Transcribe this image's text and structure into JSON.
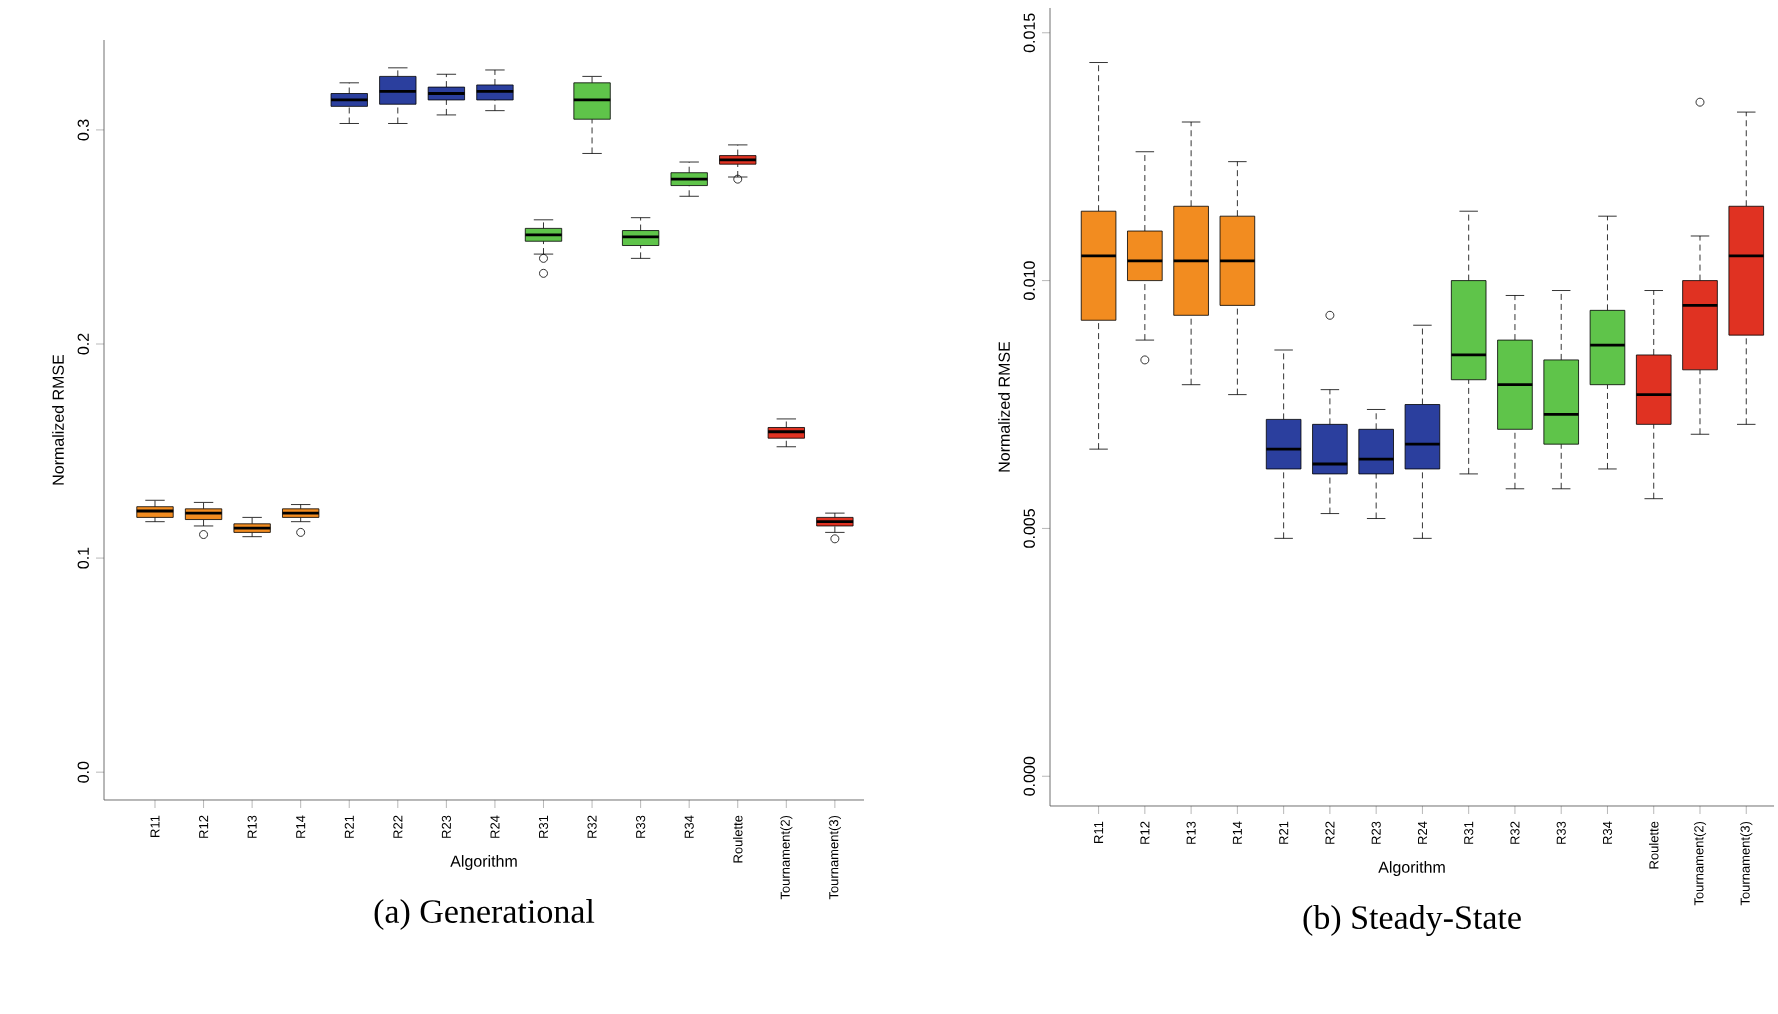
{
  "chart_data": [
    {
      "type": "box",
      "title": "(a) Generational",
      "xlabel": "Algorithm",
      "ylabel": "Normalized RMSE",
      "categories": [
        "R11",
        "R12",
        "R13",
        "R14",
        "R21",
        "R22",
        "R23",
        "R24",
        "R31",
        "R32",
        "R33",
        "R34",
        "Roulette",
        "Tournament(2)",
        "Tournament(3)"
      ],
      "colors": [
        "#f28c20",
        "#f28c20",
        "#f28c20",
        "#f28c20",
        "#2b3f9e",
        "#2b3f9e",
        "#2b3f9e",
        "#2b3f9e",
        "#5fc44a",
        "#5fc44a",
        "#5fc44a",
        "#5fc44a",
        "#e03222",
        "#e03222",
        "#e03222"
      ],
      "boxes": [
        {
          "low": 0.117,
          "q1": 0.119,
          "median": 0.122,
          "q3": 0.124,
          "high": 0.127
        },
        {
          "low": 0.115,
          "q1": 0.118,
          "median": 0.121,
          "q3": 0.123,
          "high": 0.126,
          "outliers": [
            0.111
          ]
        },
        {
          "low": 0.11,
          "q1": 0.112,
          "median": 0.114,
          "q3": 0.116,
          "high": 0.119
        },
        {
          "low": 0.117,
          "q1": 0.119,
          "median": 0.121,
          "q3": 0.123,
          "high": 0.125,
          "outliers": [
            0.112
          ]
        },
        {
          "low": 0.303,
          "q1": 0.311,
          "median": 0.314,
          "q3": 0.317,
          "high": 0.322
        },
        {
          "low": 0.303,
          "q1": 0.312,
          "median": 0.318,
          "q3": 0.325,
          "high": 0.329
        },
        {
          "low": 0.307,
          "q1": 0.314,
          "median": 0.317,
          "q3": 0.32,
          "high": 0.326
        },
        {
          "low": 0.309,
          "q1": 0.314,
          "median": 0.318,
          "q3": 0.321,
          "high": 0.328
        },
        {
          "low": 0.242,
          "q1": 0.248,
          "median": 0.251,
          "q3": 0.254,
          "high": 0.258,
          "outliers": [
            0.24,
            0.233
          ]
        },
        {
          "low": 0.289,
          "q1": 0.305,
          "median": 0.314,
          "q3": 0.322,
          "high": 0.325
        },
        {
          "low": 0.24,
          "q1": 0.246,
          "median": 0.25,
          "q3": 0.253,
          "high": 0.259
        },
        {
          "low": 0.269,
          "q1": 0.274,
          "median": 0.277,
          "q3": 0.28,
          "high": 0.285
        },
        {
          "low": 0.278,
          "q1": 0.284,
          "median": 0.286,
          "q3": 0.288,
          "high": 0.293,
          "outliers": [
            0.277
          ]
        },
        {
          "low": 0.152,
          "q1": 0.156,
          "median": 0.159,
          "q3": 0.161,
          "high": 0.165
        },
        {
          "low": 0.112,
          "q1": 0.115,
          "median": 0.117,
          "q3": 0.119,
          "high": 0.121,
          "outliers": [
            0.109
          ]
        }
      ],
      "ylim": [
        -0.013,
        0.342
      ],
      "yticks": [
        {
          "value": 0,
          "label": "0.0"
        },
        {
          "value": 0.1,
          "label": "0.1"
        },
        {
          "value": 0.2,
          "label": "0.2"
        },
        {
          "value": 0.3,
          "label": "0.3"
        }
      ]
    },
    {
      "type": "box",
      "title": "(b) Steady-State",
      "xlabel": "Algorithm",
      "ylabel": "Normalized RMSE",
      "categories": [
        "R11",
        "R12",
        "R13",
        "R14",
        "R21",
        "R22",
        "R23",
        "R24",
        "R31",
        "R32",
        "R33",
        "R34",
        "Roulette",
        "Tournament(2)",
        "Tournament(3)"
      ],
      "colors": [
        "#f28c20",
        "#f28c20",
        "#f28c20",
        "#f28c20",
        "#2b3f9e",
        "#2b3f9e",
        "#2b3f9e",
        "#2b3f9e",
        "#5fc44a",
        "#5fc44a",
        "#5fc44a",
        "#5fc44a",
        "#e03222",
        "#e03222",
        "#e03222"
      ],
      "boxes": [
        {
          "low": 0.0066,
          "q1": 0.0092,
          "median": 0.0105,
          "q3": 0.0114,
          "high": 0.0144
        },
        {
          "low": 0.0088,
          "q1": 0.01,
          "median": 0.0104,
          "q3": 0.011,
          "high": 0.0126,
          "outliers": [
            0.0084
          ]
        },
        {
          "low": 0.0079,
          "q1": 0.0093,
          "median": 0.0104,
          "q3": 0.0115,
          "high": 0.0132
        },
        {
          "low": 0.0077,
          "q1": 0.0095,
          "median": 0.0104,
          "q3": 0.0113,
          "high": 0.0124
        },
        {
          "low": 0.0048,
          "q1": 0.0062,
          "median": 0.0066,
          "q3": 0.0072,
          "high": 0.0086
        },
        {
          "low": 0.0053,
          "q1": 0.0061,
          "median": 0.0063,
          "q3": 0.0071,
          "high": 0.0078,
          "outliers": [
            0.0093
          ]
        },
        {
          "low": 0.0052,
          "q1": 0.0061,
          "median": 0.0064,
          "q3": 0.007,
          "high": 0.0074
        },
        {
          "low": 0.0048,
          "q1": 0.0062,
          "median": 0.0067,
          "q3": 0.0075,
          "high": 0.0091
        },
        {
          "low": 0.0061,
          "q1": 0.008,
          "median": 0.0085,
          "q3": 0.01,
          "high": 0.0114
        },
        {
          "low": 0.0058,
          "q1": 0.007,
          "median": 0.0079,
          "q3": 0.0088,
          "high": 0.0097
        },
        {
          "low": 0.0058,
          "q1": 0.0067,
          "median": 0.0073,
          "q3": 0.0084,
          "high": 0.0098
        },
        {
          "low": 0.0062,
          "q1": 0.0079,
          "median": 0.0087,
          "q3": 0.0094,
          "high": 0.0113
        },
        {
          "low": 0.0056,
          "q1": 0.0071,
          "median": 0.0077,
          "q3": 0.0085,
          "high": 0.0098
        },
        {
          "low": 0.0069,
          "q1": 0.0082,
          "median": 0.0095,
          "q3": 0.01,
          "high": 0.0109,
          "outliers": [
            0.0136
          ]
        },
        {
          "low": 0.0071,
          "q1": 0.0089,
          "median": 0.0105,
          "q3": 0.0115,
          "high": 0.0134
        }
      ],
      "ylim": [
        -0.0006,
        0.0155
      ],
      "yticks": [
        {
          "value": 0,
          "label": "0.000"
        },
        {
          "value": 0.005,
          "label": "0.005"
        },
        {
          "value": 0.01,
          "label": "0.010"
        },
        {
          "value": 0.015,
          "label": "0.015"
        }
      ]
    }
  ]
}
